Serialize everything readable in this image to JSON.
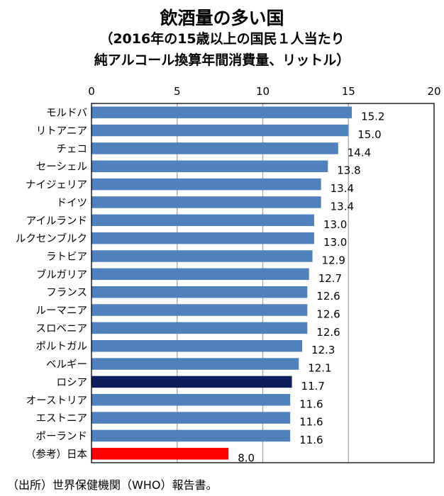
{
  "title": "飲酒量の多い国",
  "subtitle_line1": "（2016年の15歳以上の国民１人当たり",
  "subtitle_line2": "純アルコール換算年間消費量、リットル）",
  "source": "（出所）世界保健機関（WHO）報告書。",
  "colors": {
    "default": "#4f81bd",
    "highlight_russia": "#0b1e5b",
    "highlight_japan": "#ff0000",
    "grid": "#a6a6a6",
    "border": "#000000"
  },
  "chart_data": {
    "type": "bar",
    "orientation": "horizontal",
    "title": "飲酒量の多い国",
    "xlim": [
      0,
      20
    ],
    "xticks": [
      "0",
      "5",
      "10",
      "15",
      "20"
    ],
    "tick_values": [
      0,
      5,
      10,
      15,
      20
    ],
    "categories": [
      "モルドバ",
      "リトアニア",
      "チェコ",
      "セーシェル",
      "ナイジェリア",
      "ドイツ",
      "アイルランド",
      "ルクセンブルク",
      "ラトビア",
      "ブルガリア",
      "フランス",
      "ルーマニア",
      "スロベニア",
      "ポルトガル",
      "ベルギー",
      "ロシア",
      "オーストリア",
      "エストニア",
      "ポーランド",
      "（参考）日本"
    ],
    "values": [
      15.2,
      15.0,
      14.4,
      13.8,
      13.4,
      13.4,
      13.0,
      13.0,
      12.9,
      12.7,
      12.6,
      12.6,
      12.6,
      12.3,
      12.1,
      11.7,
      11.6,
      11.6,
      11.6,
      8.0
    ],
    "value_labels": [
      "15.2",
      "15.0",
      "14.4",
      "13.8",
      "13.4",
      "13.4",
      "13.0",
      "13.0",
      "12.9",
      "12.7",
      "12.6",
      "12.6",
      "12.6",
      "12.3",
      "12.1",
      "11.7",
      "11.6",
      "11.6",
      "11.6",
      "8.0"
    ],
    "highlight": {
      "ロシア": "highlight_russia",
      "（参考）日本": "highlight_japan"
    }
  }
}
